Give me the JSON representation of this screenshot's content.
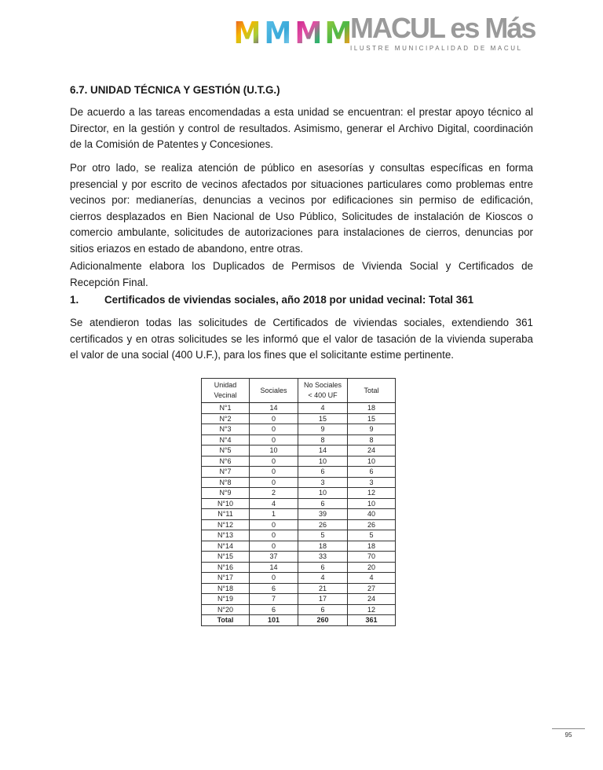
{
  "header": {
    "logo_letters": [
      "M",
      "M",
      "M",
      "M"
    ],
    "brand": "MACUL es Más",
    "brand_sub": "ILUSTRE MUNICIPALIDAD DE MACUL"
  },
  "section_title": "6.7. UNIDAD TÉCNICA Y GESTIÓN (U.T.G.)",
  "paragraphs": [
    [
      "De acuerdo a las tareas encomendadas a esta unidad se encuentran: el prestar apoyo técnico al",
      "Director, en la gestión y control de resultados. Asimismo, generar el Archivo Digital, coordinación",
      "de la Comisión de Patentes y Concesiones."
    ],
    [
      "Por otro lado, se realiza atención de público en asesorías y consultas específicas en forma",
      "presencial y por escrito de vecinos afectados por situaciones particulares como problemas entre",
      "vecinos por: medianerías, denuncias a vecinos por edificaciones sin permiso de edificación,",
      "cierros desplazados en Bien Nacional de Uso Público, Solicitudes de instalación de Kioscos o",
      "comercio ambulante, solicitudes de autorizaciones para instalaciones de cierros, denuncias por",
      "sitios eriazos en estado de abandono, entre otras."
    ],
    [
      "Adicionalmente elabora los Duplicados de Permisos de Vivienda Social y Certificados de",
      "Recepción Final."
    ]
  ],
  "subsection": {
    "number": "1.",
    "title": "Certificados de viviendas sociales, año 2018 por unidad vecinal: Total 361"
  },
  "paragraph4": [
    "Se atendieron todas las solicitudes de Certificados de viviendas sociales, extendiendo 361",
    "certificados y en otras solicitudes se les informó que el valor de tasación de la vivienda superaba",
    "el valor de una social (400 U.F.), para los fines que el solicitante estime pertinente."
  ],
  "table": {
    "headers": [
      [
        "Unidad",
        "Vecinal"
      ],
      [
        "Sociales"
      ],
      [
        "No Sociales",
        "< 400 UF"
      ],
      [
        "Total"
      ]
    ],
    "rows": [
      [
        "N°1",
        "14",
        "4",
        "18"
      ],
      [
        "N°2",
        "0",
        "15",
        "15"
      ],
      [
        "N°3",
        "0",
        "9",
        "9"
      ],
      [
        "N°4",
        "0",
        "8",
        "8"
      ],
      [
        "N°5",
        "10",
        "14",
        "24"
      ],
      [
        "N°6",
        "0",
        "10",
        "10"
      ],
      [
        "N°7",
        "0",
        "6",
        "6"
      ],
      [
        "N°8",
        "0",
        "3",
        "3"
      ],
      [
        "N°9",
        "2",
        "10",
        "12"
      ],
      [
        "N°10",
        "4",
        "6",
        "10"
      ],
      [
        "N°11",
        "1",
        "39",
        "40"
      ],
      [
        "N°12",
        "0",
        "26",
        "26"
      ],
      [
        "N°13",
        "0",
        "5",
        "5"
      ],
      [
        "N°14",
        "0",
        "18",
        "18"
      ],
      [
        "N°15",
        "37",
        "33",
        "70"
      ],
      [
        "N°16",
        "14",
        "6",
        "20"
      ],
      [
        "N°17",
        "0",
        "4",
        "4"
      ],
      [
        "N°18",
        "6",
        "21",
        "27"
      ],
      [
        "N°19",
        "7",
        "17",
        "24"
      ],
      [
        "N°20",
        "6",
        "6",
        "12"
      ]
    ],
    "total": [
      "Total",
      "101",
      "260",
      "361"
    ]
  },
  "footer": {
    "page_number": "95"
  }
}
